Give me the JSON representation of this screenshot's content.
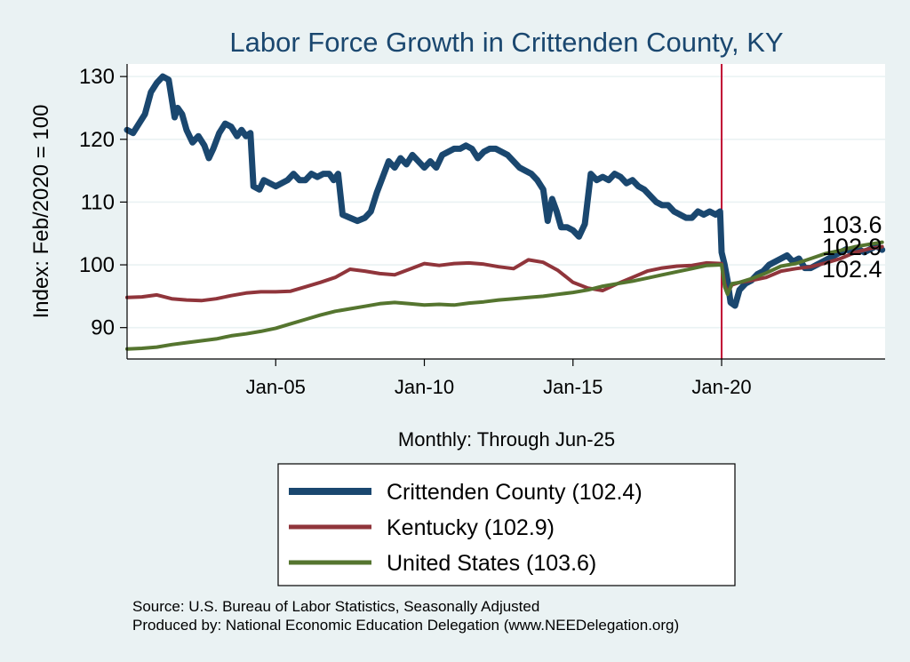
{
  "chart_data": {
    "type": "line",
    "title": "Labor Force Growth in Crittenden  County, KY",
    "xlabel": "Monthly: Through Jun-25",
    "ylabel": "Index: Feb/2020 = 100",
    "xlim": [
      2000.0,
      2025.5
    ],
    "ylim": [
      85,
      132
    ],
    "yticks": [
      90,
      100,
      110,
      120,
      130
    ],
    "xticks": [
      {
        "value": 2005.0,
        "label": "Jan-05"
      },
      {
        "value": 2010.0,
        "label": "Jan-10"
      },
      {
        "value": 2015.0,
        "label": "Jan-15"
      },
      {
        "value": 2020.0,
        "label": "Jan-20"
      }
    ],
    "reference_line": {
      "x": 2020.0,
      "color": "#c10534"
    },
    "grid": true,
    "legend_position": "bottom",
    "end_labels": [
      {
        "text": "103.6",
        "value": 103.6
      },
      {
        "text": "102.9",
        "value": 102.9
      },
      {
        "text": "102.4",
        "value": 102.4
      }
    ],
    "series": [
      {
        "name": "Crittenden  County (102.4)",
        "color": "#1a476f",
        "width": 7,
        "points": [
          [
            2000.0,
            121.5
          ],
          [
            2000.2,
            121.0
          ],
          [
            2000.4,
            122.5
          ],
          [
            2000.6,
            124.0
          ],
          [
            2000.8,
            127.5
          ],
          [
            2001.0,
            129.0
          ],
          [
            2001.2,
            130.0
          ],
          [
            2001.4,
            129.5
          ],
          [
            2001.5,
            126.5
          ],
          [
            2001.6,
            123.5
          ],
          [
            2001.7,
            125.0
          ],
          [
            2001.85,
            124.0
          ],
          [
            2002.0,
            121.5
          ],
          [
            2002.2,
            119.5
          ],
          [
            2002.4,
            120.5
          ],
          [
            2002.6,
            119.0
          ],
          [
            2002.75,
            117.0
          ],
          [
            2002.9,
            118.5
          ],
          [
            2003.1,
            121.0
          ],
          [
            2003.3,
            122.5
          ],
          [
            2003.5,
            122.0
          ],
          [
            2003.7,
            120.5
          ],
          [
            2003.85,
            121.5
          ],
          [
            2004.0,
            120.5
          ],
          [
            2004.15,
            121.0
          ],
          [
            2004.25,
            112.5
          ],
          [
            2004.45,
            112.0
          ],
          [
            2004.6,
            113.5
          ],
          [
            2004.8,
            113.0
          ],
          [
            2005.0,
            112.5
          ],
          [
            2005.2,
            113.0
          ],
          [
            2005.4,
            113.5
          ],
          [
            2005.6,
            114.5
          ],
          [
            2005.8,
            113.5
          ],
          [
            2006.0,
            113.5
          ],
          [
            2006.2,
            114.5
          ],
          [
            2006.4,
            114.0
          ],
          [
            2006.6,
            114.5
          ],
          [
            2006.8,
            114.5
          ],
          [
            2006.95,
            113.5
          ],
          [
            2007.1,
            114.5
          ],
          [
            2007.25,
            108.0
          ],
          [
            2007.5,
            107.5
          ],
          [
            2007.75,
            107.0
          ],
          [
            2008.0,
            107.5
          ],
          [
            2008.2,
            108.5
          ],
          [
            2008.4,
            111.5
          ],
          [
            2008.6,
            114.0
          ],
          [
            2008.8,
            116.5
          ],
          [
            2009.0,
            115.5
          ],
          [
            2009.2,
            117.0
          ],
          [
            2009.4,
            116.0
          ],
          [
            2009.6,
            117.5
          ],
          [
            2009.8,
            116.5
          ],
          [
            2010.0,
            115.5
          ],
          [
            2010.2,
            116.5
          ],
          [
            2010.4,
            115.5
          ],
          [
            2010.6,
            117.5
          ],
          [
            2010.8,
            118.0
          ],
          [
            2011.0,
            118.5
          ],
          [
            2011.2,
            118.5
          ],
          [
            2011.4,
            119.0
          ],
          [
            2011.6,
            118.5
          ],
          [
            2011.8,
            117.0
          ],
          [
            2012.0,
            118.0
          ],
          [
            2012.2,
            118.5
          ],
          [
            2012.4,
            118.5
          ],
          [
            2012.6,
            118.0
          ],
          [
            2012.8,
            117.5
          ],
          [
            2013.0,
            116.5
          ],
          [
            2013.2,
            115.5
          ],
          [
            2013.4,
            115.0
          ],
          [
            2013.6,
            114.5
          ],
          [
            2013.8,
            113.5
          ],
          [
            2014.0,
            112.0
          ],
          [
            2014.15,
            107.0
          ],
          [
            2014.3,
            110.5
          ],
          [
            2014.45,
            108.5
          ],
          [
            2014.6,
            106.0
          ],
          [
            2014.8,
            106.0
          ],
          [
            2015.0,
            105.5
          ],
          [
            2015.2,
            104.5
          ],
          [
            2015.4,
            106.5
          ],
          [
            2015.6,
            114.5
          ],
          [
            2015.8,
            113.5
          ],
          [
            2016.0,
            114.0
          ],
          [
            2016.2,
            113.5
          ],
          [
            2016.4,
            114.5
          ],
          [
            2016.6,
            114.0
          ],
          [
            2016.8,
            113.0
          ],
          [
            2017.0,
            113.5
          ],
          [
            2017.2,
            112.5
          ],
          [
            2017.4,
            112.0
          ],
          [
            2017.6,
            111.0
          ],
          [
            2017.8,
            110.0
          ],
          [
            2018.0,
            109.5
          ],
          [
            2018.2,
            109.5
          ],
          [
            2018.4,
            108.5
          ],
          [
            2018.6,
            108.0
          ],
          [
            2018.8,
            107.5
          ],
          [
            2019.0,
            107.5
          ],
          [
            2019.2,
            108.5
          ],
          [
            2019.4,
            108.0
          ],
          [
            2019.6,
            108.5
          ],
          [
            2019.8,
            108.0
          ],
          [
            2019.95,
            108.5
          ],
          [
            2020.0,
            102.0
          ],
          [
            2020.1,
            100.0
          ],
          [
            2020.2,
            97.5
          ],
          [
            2020.3,
            94.0
          ],
          [
            2020.45,
            93.5
          ],
          [
            2020.6,
            96.0
          ],
          [
            2020.8,
            97.0
          ],
          [
            2021.0,
            97.5
          ],
          [
            2021.2,
            98.5
          ],
          [
            2021.4,
            99.0
          ],
          [
            2021.6,
            100.0
          ],
          [
            2021.8,
            100.5
          ],
          [
            2022.0,
            101.0
          ],
          [
            2022.2,
            101.5
          ],
          [
            2022.4,
            100.5
          ],
          [
            2022.6,
            101.0
          ],
          [
            2022.8,
            99.5
          ],
          [
            2023.0,
            99.5
          ],
          [
            2023.2,
            100.0
          ],
          [
            2023.4,
            100.5
          ],
          [
            2023.6,
            101.0
          ],
          [
            2023.8,
            101.5
          ],
          [
            2024.0,
            102.0
          ],
          [
            2024.2,
            102.5
          ],
          [
            2024.4,
            102.0
          ],
          [
            2024.6,
            102.5
          ],
          [
            2024.8,
            102.0
          ],
          [
            2025.0,
            102.5
          ],
          [
            2025.2,
            103.0
          ],
          [
            2025.4,
            102.4
          ]
        ]
      },
      {
        "name": "Kentucky (102.9)",
        "color": "#90353b",
        "width": 4,
        "points": [
          [
            2000.0,
            94.8
          ],
          [
            2000.5,
            94.9
          ],
          [
            2001.0,
            95.2
          ],
          [
            2001.5,
            94.6
          ],
          [
            2002.0,
            94.4
          ],
          [
            2002.5,
            94.3
          ],
          [
            2003.0,
            94.6
          ],
          [
            2003.5,
            95.1
          ],
          [
            2004.0,
            95.5
          ],
          [
            2004.5,
            95.7
          ],
          [
            2005.0,
            95.7
          ],
          [
            2005.5,
            95.8
          ],
          [
            2006.0,
            96.5
          ],
          [
            2006.5,
            97.2
          ],
          [
            2007.0,
            98.0
          ],
          [
            2007.5,
            99.3
          ],
          [
            2008.0,
            99.0
          ],
          [
            2008.5,
            98.6
          ],
          [
            2009.0,
            98.4
          ],
          [
            2009.5,
            99.3
          ],
          [
            2010.0,
            100.2
          ],
          [
            2010.5,
            99.9
          ],
          [
            2011.0,
            100.2
          ],
          [
            2011.5,
            100.3
          ],
          [
            2012.0,
            100.1
          ],
          [
            2012.5,
            99.7
          ],
          [
            2013.0,
            99.4
          ],
          [
            2013.5,
            100.8
          ],
          [
            2014.0,
            100.4
          ],
          [
            2014.5,
            99.1
          ],
          [
            2015.0,
            97.2
          ],
          [
            2015.5,
            96.3
          ],
          [
            2016.0,
            95.9
          ],
          [
            2016.5,
            97.0
          ],
          [
            2017.0,
            98.0
          ],
          [
            2017.5,
            99.0
          ],
          [
            2018.0,
            99.5
          ],
          [
            2018.5,
            99.8
          ],
          [
            2019.0,
            99.9
          ],
          [
            2019.5,
            100.3
          ],
          [
            2020.0,
            100.2
          ],
          [
            2020.1,
            97.0
          ],
          [
            2020.2,
            95.5
          ],
          [
            2020.35,
            96.8
          ],
          [
            2020.6,
            97.2
          ],
          [
            2021.0,
            97.5
          ],
          [
            2021.5,
            98.0
          ],
          [
            2022.0,
            99.0
          ],
          [
            2022.5,
            99.4
          ],
          [
            2023.0,
            99.7
          ],
          [
            2023.5,
            100.3
          ],
          [
            2024.0,
            101.0
          ],
          [
            2024.5,
            102.0
          ],
          [
            2025.0,
            102.6
          ],
          [
            2025.4,
            102.9
          ]
        ]
      },
      {
        "name": "United States (103.6)",
        "color": "#55752f",
        "width": 4,
        "points": [
          [
            2000.0,
            86.6
          ],
          [
            2000.5,
            86.7
          ],
          [
            2001.0,
            86.9
          ],
          [
            2001.5,
            87.3
          ],
          [
            2002.0,
            87.6
          ],
          [
            2002.5,
            87.9
          ],
          [
            2003.0,
            88.2
          ],
          [
            2003.5,
            88.7
          ],
          [
            2004.0,
            89.0
          ],
          [
            2004.5,
            89.4
          ],
          [
            2005.0,
            89.9
          ],
          [
            2005.5,
            90.6
          ],
          [
            2006.0,
            91.3
          ],
          [
            2006.5,
            92.0
          ],
          [
            2007.0,
            92.6
          ],
          [
            2007.5,
            93.0
          ],
          [
            2008.0,
            93.4
          ],
          [
            2008.5,
            93.8
          ],
          [
            2009.0,
            94.0
          ],
          [
            2009.5,
            93.8
          ],
          [
            2010.0,
            93.6
          ],
          [
            2010.5,
            93.7
          ],
          [
            2011.0,
            93.6
          ],
          [
            2011.5,
            93.9
          ],
          [
            2012.0,
            94.1
          ],
          [
            2012.5,
            94.4
          ],
          [
            2013.0,
            94.6
          ],
          [
            2013.5,
            94.8
          ],
          [
            2014.0,
            95.0
          ],
          [
            2014.5,
            95.3
          ],
          [
            2015.0,
            95.6
          ],
          [
            2015.5,
            96.0
          ],
          [
            2016.0,
            96.6
          ],
          [
            2016.5,
            97.0
          ],
          [
            2017.0,
            97.4
          ],
          [
            2017.5,
            97.9
          ],
          [
            2018.0,
            98.4
          ],
          [
            2018.5,
            98.9
          ],
          [
            2019.0,
            99.4
          ],
          [
            2019.5,
            99.9
          ],
          [
            2020.0,
            100.0
          ],
          [
            2020.1,
            96.5
          ],
          [
            2020.2,
            95.3
          ],
          [
            2020.35,
            97.0
          ],
          [
            2020.6,
            97.2
          ],
          [
            2021.0,
            97.8
          ],
          [
            2021.5,
            98.7
          ],
          [
            2022.0,
            99.8
          ],
          [
            2022.5,
            100.2
          ],
          [
            2023.0,
            101.0
          ],
          [
            2023.5,
            101.8
          ],
          [
            2024.0,
            102.3
          ],
          [
            2024.5,
            102.9
          ],
          [
            2025.0,
            103.3
          ],
          [
            2025.4,
            103.6
          ]
        ]
      }
    ]
  },
  "source": {
    "line1": "Source: U.S. Bureau of Labor Statistics, Seasonally Adjusted",
    "line2": "Produced by: National Economic Education Delegation (www.NEEDelegation.org)"
  }
}
